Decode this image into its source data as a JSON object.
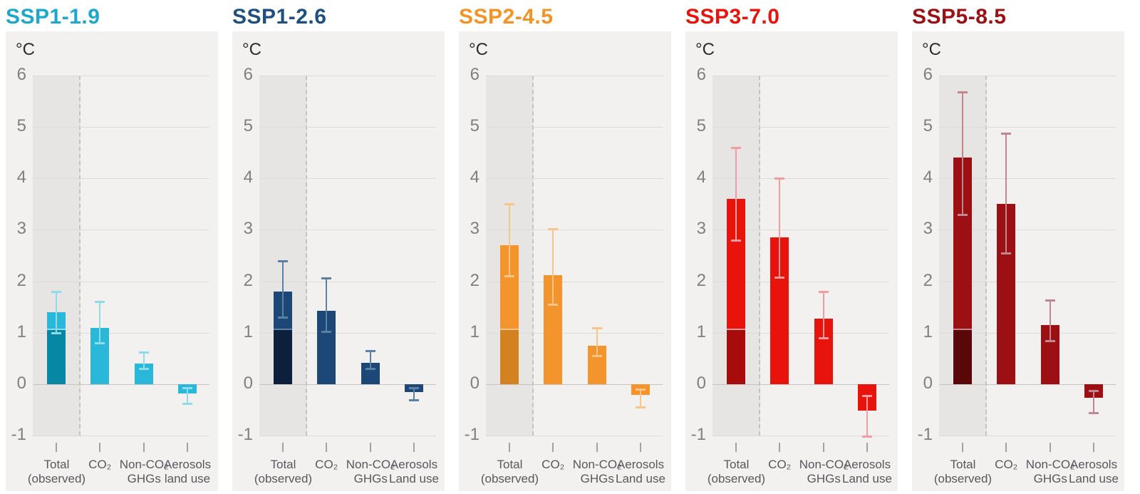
{
  "figure": {
    "unit_label": "°C",
    "y_ticks": [
      6,
      5,
      4,
      3,
      2,
      1,
      0,
      -1
    ],
    "ylim": [
      -1,
      6
    ],
    "grid": true,
    "background_color": "#f2f1ef",
    "observed_shade_color": "#e6e5e3",
    "observed_level": 1.07
  },
  "chart_data": [
    {
      "type": "bar",
      "title": "SSP1-1.9",
      "title_color": "#1ba8cb",
      "bar_color": "#29b7da",
      "bar_dark_color": "#0688a5",
      "error_color": "#8fdbe9",
      "ylabel": "°C",
      "ylim": [
        -1,
        6
      ],
      "observed_level": 1.07,
      "categories": [
        {
          "key": "total-observed",
          "label_lines": [
            "Total",
            "(observed)"
          ],
          "value": 1.4,
          "error_low": 1.0,
          "error_high": 1.8,
          "observed_split": true
        },
        {
          "key": "co2",
          "label_lines": [
            "CO₂"
          ],
          "value": 1.1,
          "error_low": 0.8,
          "error_high": 1.6,
          "observed_split": false
        },
        {
          "key": "non-co2-ghgs",
          "label_lines": [
            "Non-CO₂",
            "GHGs"
          ],
          "value": 0.4,
          "error_low": 0.3,
          "error_high": 0.62,
          "observed_split": false
        },
        {
          "key": "aerosols-land-use",
          "label_lines": [
            "Aerosols",
            "land use"
          ],
          "value": -0.18,
          "error_low": -0.37,
          "error_high": -0.07,
          "observed_split": false
        }
      ]
    },
    {
      "type": "bar",
      "title": "SSP1-2.6",
      "title_color": "#1d4f80",
      "bar_color": "#1c4777",
      "bar_dark_color": "#0d1f3a",
      "error_color": "#5d80a5",
      "ylabel": "°C",
      "ylim": [
        -1,
        6
      ],
      "observed_level": 1.07,
      "categories": [
        {
          "key": "total-observed",
          "label_lines": [
            "Total",
            "(observed)"
          ],
          "value": 1.8,
          "error_low": 1.3,
          "error_high": 2.4,
          "observed_split": true
        },
        {
          "key": "co2",
          "label_lines": [
            "CO₂"
          ],
          "value": 1.42,
          "error_low": 1.02,
          "error_high": 2.06,
          "observed_split": false
        },
        {
          "key": "non-co2-ghgs",
          "label_lines": [
            "Non-CO₂",
            "GHGs"
          ],
          "value": 0.42,
          "error_low": 0.3,
          "error_high": 0.65,
          "observed_split": false
        },
        {
          "key": "aerosols-land-use",
          "label_lines": [
            "Aerosols",
            "Land use"
          ],
          "value": -0.16,
          "error_low": -0.31,
          "error_high": -0.07,
          "observed_split": false
        }
      ]
    },
    {
      "type": "bar",
      "title": "SSP2-4.5",
      "title_color": "#f39324",
      "bar_color": "#f3942c",
      "bar_dark_color": "#d4821f",
      "error_color": "#f7c489",
      "ylabel": "°C",
      "ylim": [
        -1,
        6
      ],
      "observed_level": 1.07,
      "categories": [
        {
          "key": "total-observed",
          "label_lines": [
            "Total",
            "(observed)"
          ],
          "value": 2.7,
          "error_low": 2.1,
          "error_high": 3.5,
          "observed_split": true
        },
        {
          "key": "co2",
          "label_lines": [
            "CO₂"
          ],
          "value": 2.12,
          "error_low": 1.55,
          "error_high": 3.02,
          "observed_split": false
        },
        {
          "key": "non-co2-ghgs",
          "label_lines": [
            "Non-CO₂",
            "GHGs"
          ],
          "value": 0.75,
          "error_low": 0.55,
          "error_high": 1.1,
          "observed_split": false
        },
        {
          "key": "aerosols-land-use",
          "label_lines": [
            "Aerosols",
            "Land use"
          ],
          "value": -0.21,
          "error_low": -0.45,
          "error_high": -0.1,
          "observed_split": false
        }
      ]
    },
    {
      "type": "bar",
      "title": "SSP3-7.0",
      "title_color": "#e8140c",
      "bar_color": "#e8140c",
      "bar_dark_color": "#a80b0b",
      "error_color": "#f29ba0",
      "ylabel": "°C",
      "ylim": [
        -1,
        6
      ],
      "observed_level": 1.07,
      "categories": [
        {
          "key": "total-observed",
          "label_lines": [
            "Total",
            "(observed)"
          ],
          "value": 3.6,
          "error_low": 2.8,
          "error_high": 4.6,
          "observed_split": true
        },
        {
          "key": "co2",
          "label_lines": [
            "CO₂"
          ],
          "value": 2.85,
          "error_low": 2.08,
          "error_high": 4.0,
          "observed_split": false
        },
        {
          "key": "non-co2-ghgs",
          "label_lines": [
            "Non-CO₂",
            "GHGs"
          ],
          "value": 1.27,
          "error_low": 0.9,
          "error_high": 1.8,
          "observed_split": false
        },
        {
          "key": "aerosols-land-use",
          "label_lines": [
            "Aerosols",
            "Land use"
          ],
          "value": -0.52,
          "error_low": -1.02,
          "error_high": -0.22,
          "observed_split": false
        }
      ]
    },
    {
      "type": "bar",
      "title": "SSP5-8.5",
      "title_color": "#9c1014",
      "bar_color": "#9c1014",
      "bar_dark_color": "#5a0709",
      "error_color": "#c18791",
      "ylabel": "°C",
      "ylim": [
        -1,
        6
      ],
      "observed_level": 1.07,
      "categories": [
        {
          "key": "total-observed",
          "label_lines": [
            "Total",
            "(observed)"
          ],
          "value": 4.4,
          "error_low": 3.3,
          "error_high": 5.68,
          "observed_split": true
        },
        {
          "key": "co2",
          "label_lines": [
            "CO₂"
          ],
          "value": 3.5,
          "error_low": 2.55,
          "error_high": 4.88,
          "observed_split": false
        },
        {
          "key": "non-co2-ghgs",
          "label_lines": [
            "Non-CO₂",
            "GHGs"
          ],
          "value": 1.15,
          "error_low": 0.85,
          "error_high": 1.63,
          "observed_split": false
        },
        {
          "key": "aerosols-land-use",
          "label_lines": [
            "Aerosols",
            "Land use"
          ],
          "value": -0.27,
          "error_low": -0.55,
          "error_high": -0.12,
          "observed_split": false
        }
      ]
    }
  ]
}
